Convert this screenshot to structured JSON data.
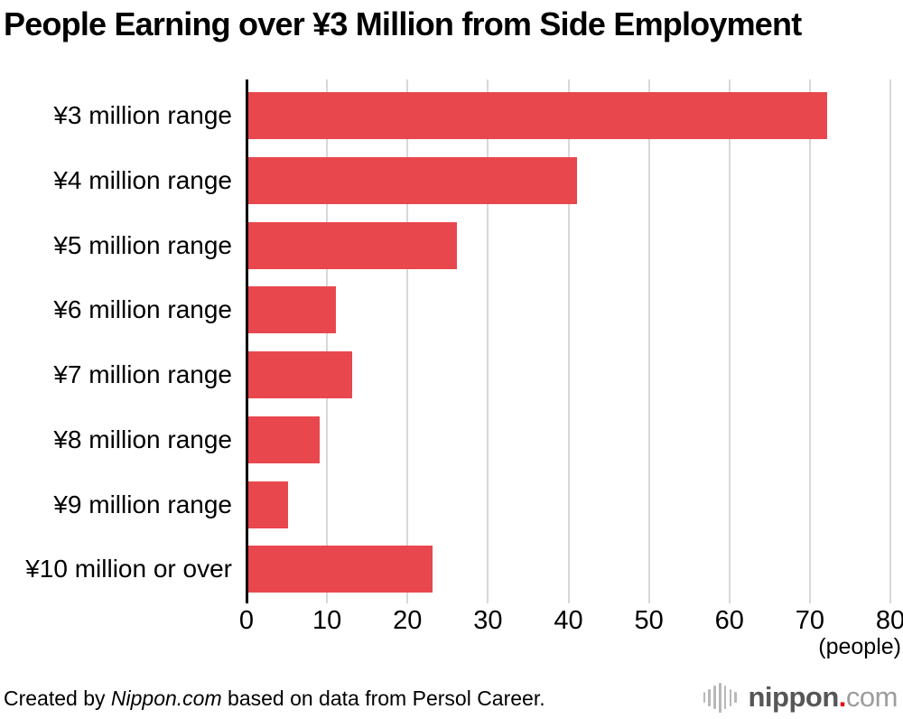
{
  "title": "People Earning over ¥3 Million from Side Employment",
  "chart_data": {
    "type": "bar",
    "orientation": "horizontal",
    "title": "People Earning over ¥3 Million from Side Employment",
    "categories": [
      "¥3 million range",
      "¥4 million range",
      "¥5 million range",
      "¥6 million range",
      "¥7 million range",
      "¥8 million range",
      "¥9 million range",
      "¥10 million or over"
    ],
    "values": [
      72,
      41,
      26,
      11,
      13,
      9,
      5,
      23
    ],
    "xlabel": "(people)",
    "ylabel": "",
    "xlim": [
      0,
      80
    ],
    "xticks": [
      0,
      10,
      20,
      30,
      40,
      50,
      60,
      70,
      80
    ],
    "grid": true,
    "legend": "none",
    "bar_color": "#e8474e"
  },
  "colors": {
    "bar": "#e8474e",
    "gridline": "#d8d8d8",
    "axis": "#000000",
    "logo_name": "#565656",
    "logo_dot": "#e60012",
    "logo_tld": "#9d9d9d",
    "logo_waves": "#b8b8b8"
  },
  "footer": {
    "credit_prefix": "Created by ",
    "credit_brand": "Nippon.com",
    "credit_suffix": " based on data from Persol Career.",
    "logo": {
      "name": "nippon",
      "dot": ".",
      "tld": "com",
      "icon": "waveform-icon"
    }
  }
}
